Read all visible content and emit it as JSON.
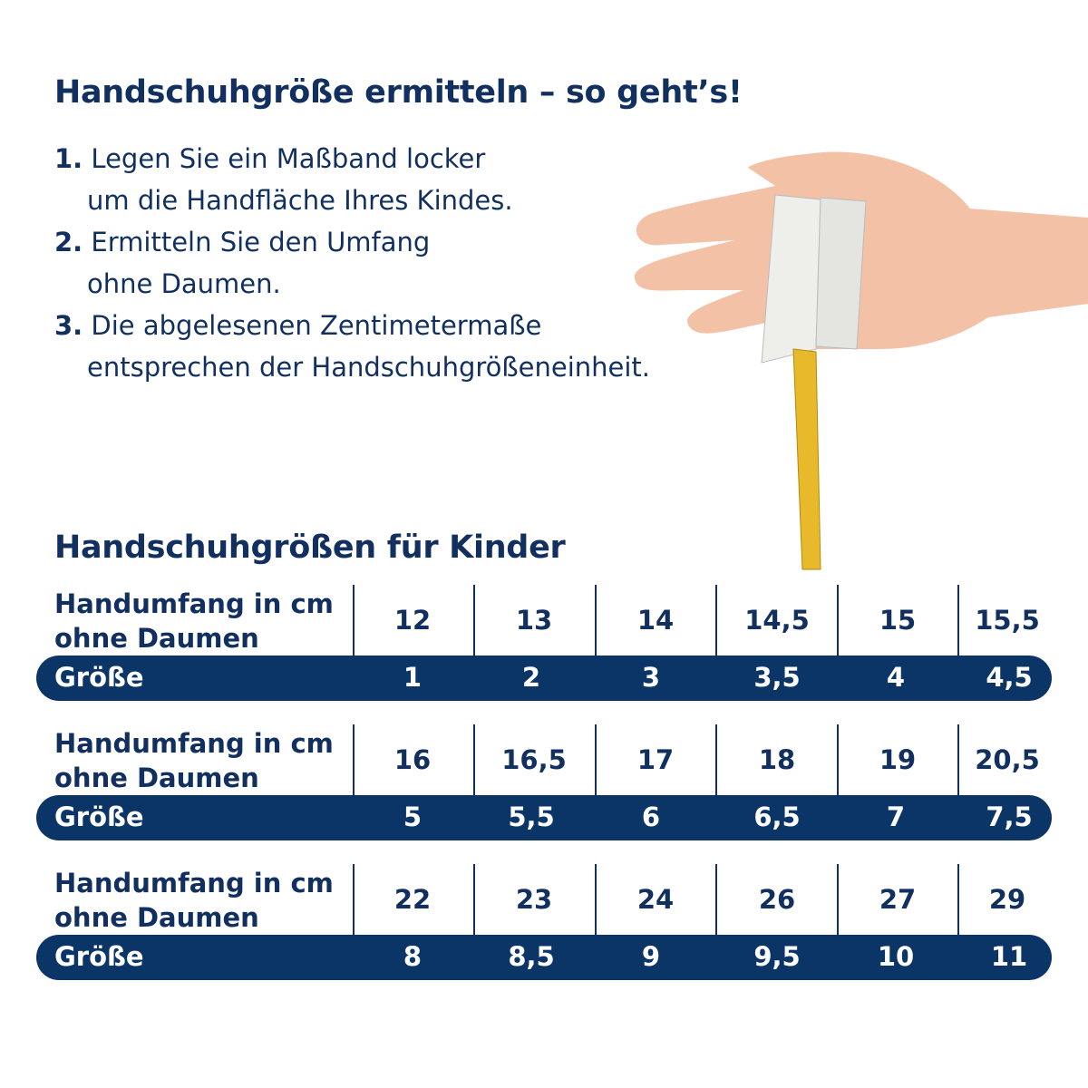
{
  "title": "Handschuhgröße ermitteln – so geht’s!",
  "steps": [
    {
      "num": "1.",
      "lines": [
        "Legen Sie ein Maßband locker",
        "um die Handfläche Ihres Kindes."
      ]
    },
    {
      "num": "2.",
      "lines": [
        "Ermitteln Sie den Umfang",
        "ohne Daumen."
      ]
    },
    {
      "num": "3.",
      "lines": [
        "Die abgelesenen Zentimetermaße",
        "entsprechen der Handschuhgrößeneinheit."
      ]
    }
  ],
  "table_title": "Handschuhgrößen für Kinder",
  "row_label": {
    "line1": "Handumfang in cm",
    "line2": "ohne Daumen"
  },
  "size_label": "Größe",
  "tables": [
    {
      "cm": [
        "12",
        "13",
        "14",
        "14,5",
        "15",
        "15,5"
      ],
      "size": [
        "1",
        "2",
        "3",
        "3,5",
        "4",
        "4,5"
      ]
    },
    {
      "cm": [
        "16",
        "16,5",
        "17",
        "18",
        "19",
        "20,5"
      ],
      "size": [
        "5",
        "5,5",
        "6",
        "6,5",
        "7",
        "7,5"
      ]
    },
    {
      "cm": [
        "22",
        "23",
        "24",
        "26",
        "27",
        "29"
      ],
      "size": [
        "8",
        "8,5",
        "9",
        "9,5",
        "10",
        "11"
      ]
    }
  ],
  "colors": {
    "text": "#12305f",
    "band": "#0a3566",
    "tape_yellow": "#e8b92a",
    "skin": "#f3c2a6"
  },
  "image": "hand-with-measuring-tape"
}
